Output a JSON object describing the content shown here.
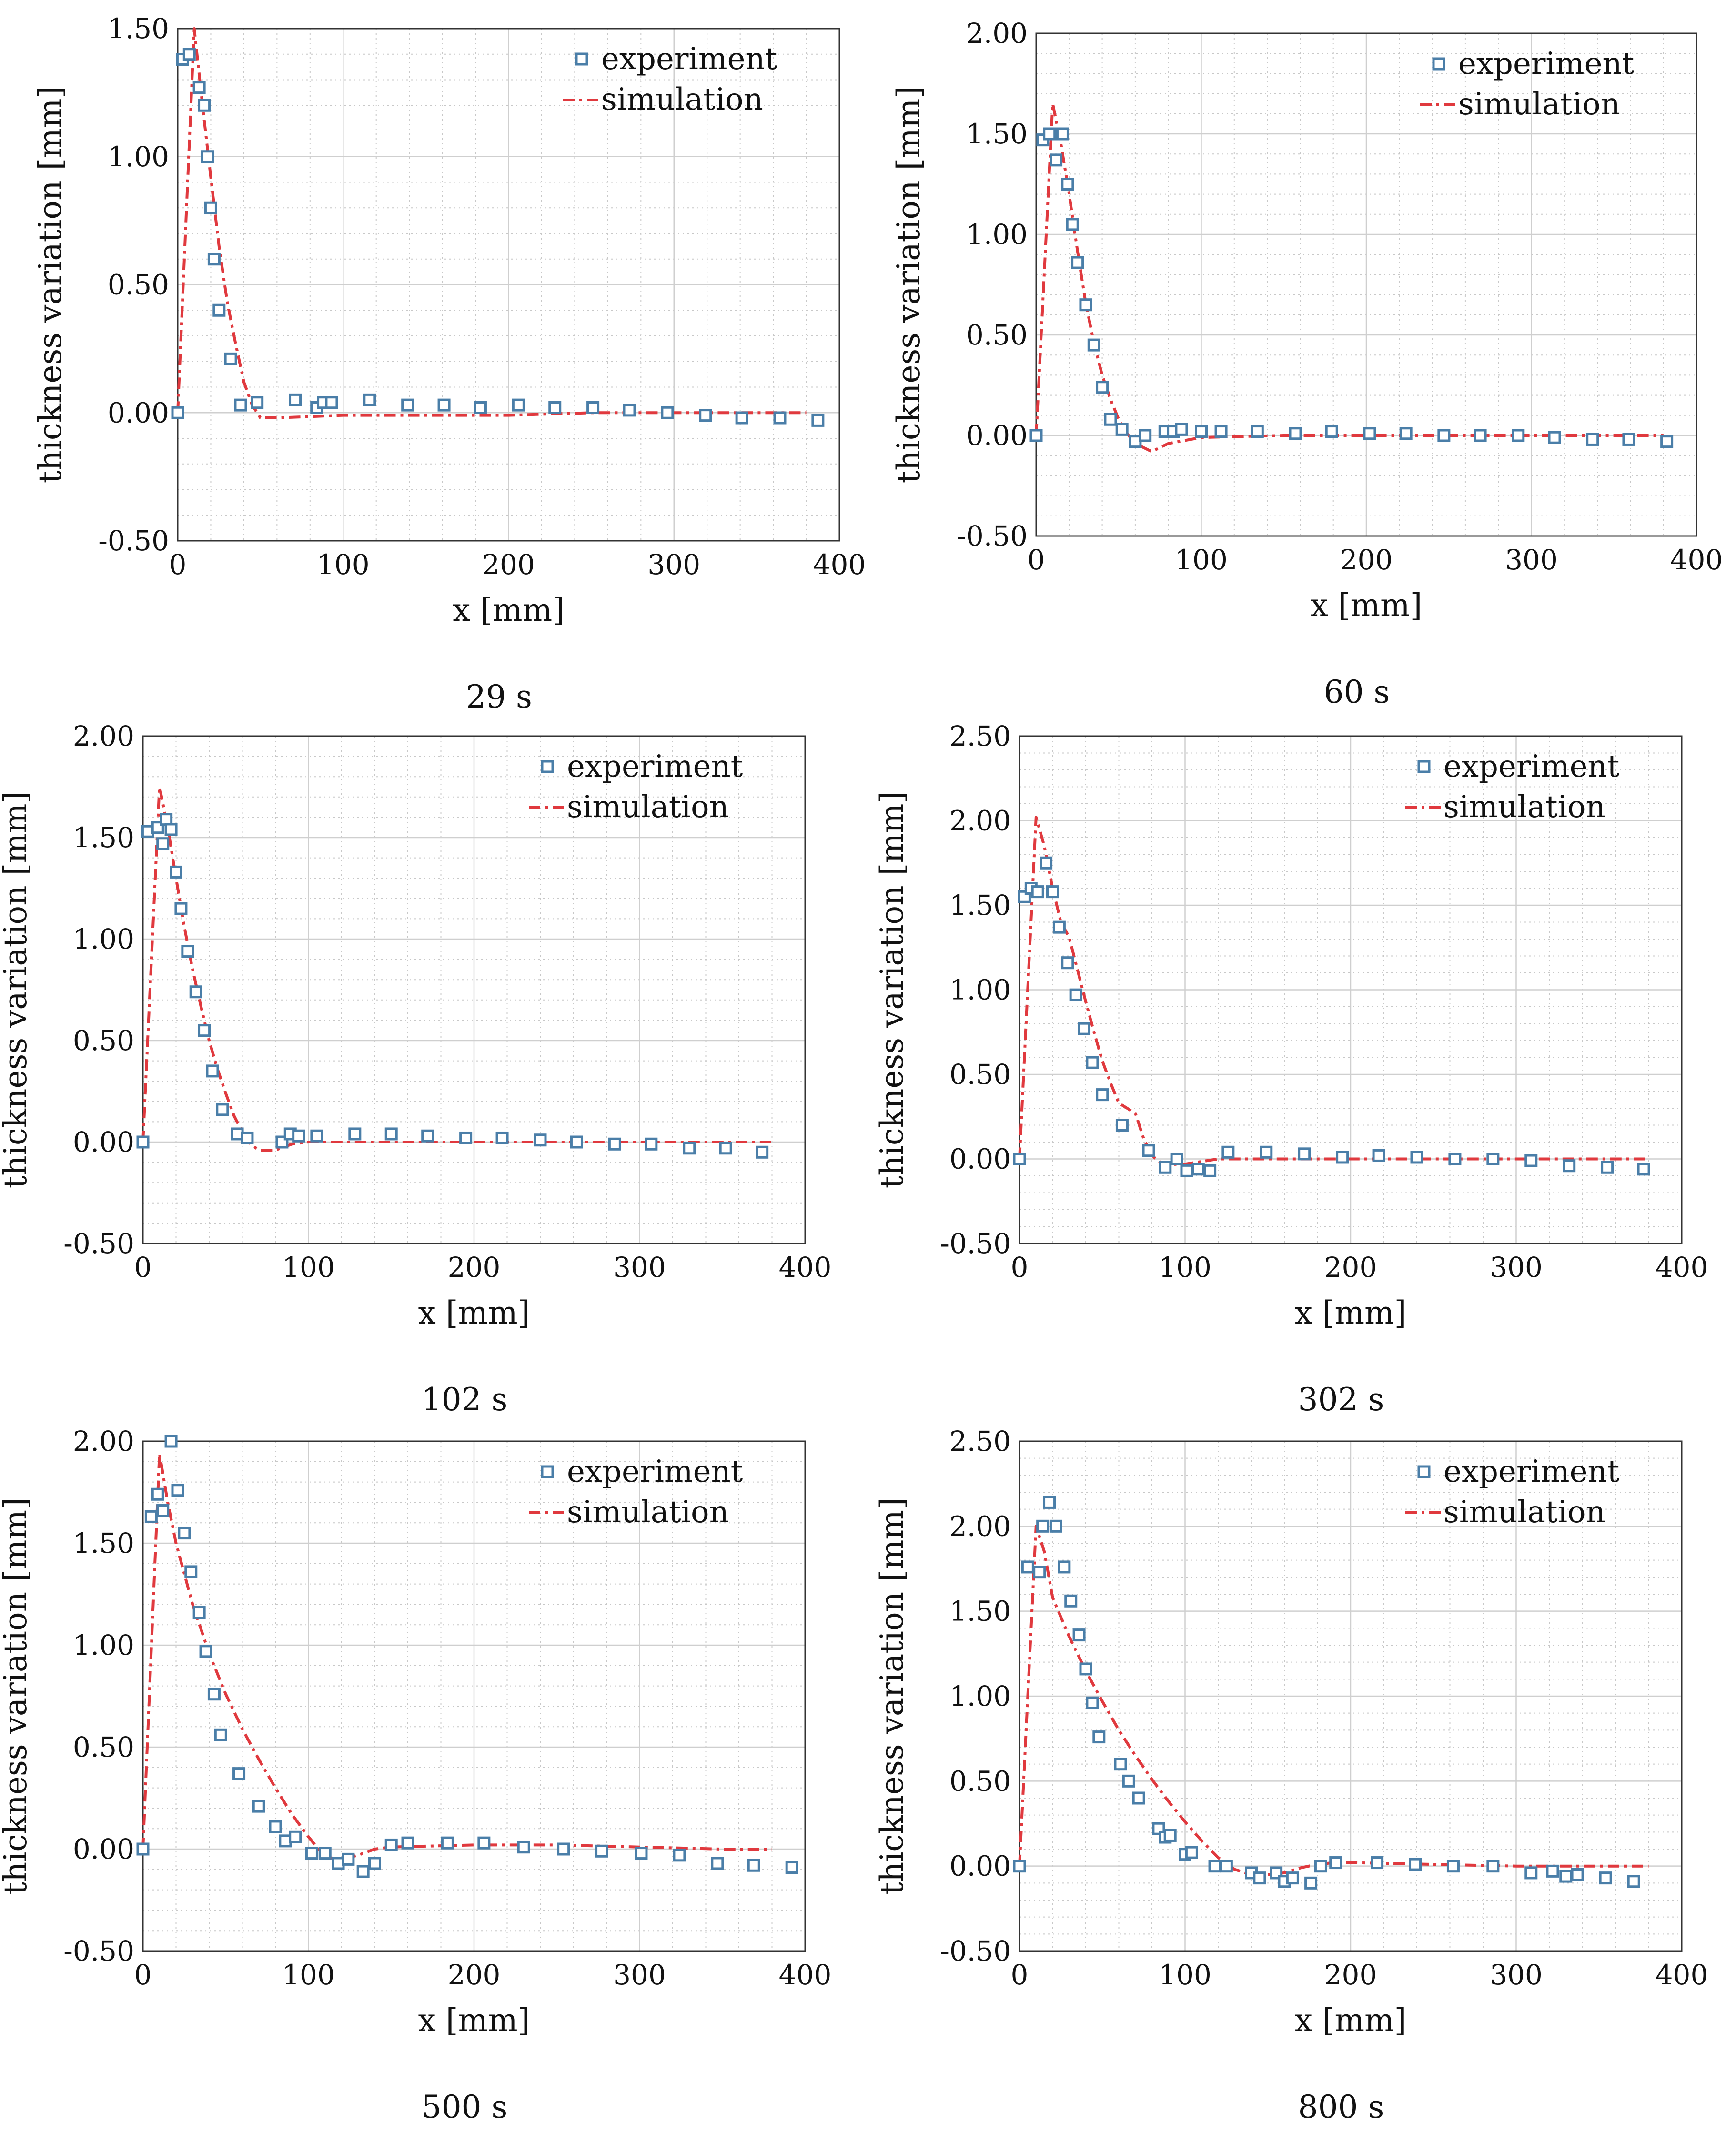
{
  "colors": {
    "experiment": "#4a7ea8",
    "simulation": "#e0393e",
    "grid_major": "#cfcfcf",
    "grid_minor": "#c8c8c8",
    "axis": "#333333"
  },
  "chart_data": [
    {
      "type": "scatter+line",
      "caption": "29 s",
      "xlabel": "x [mm]",
      "ylabel": "thickness variation [mm]",
      "xlim": [
        0,
        400
      ],
      "ylim": [
        -0.5,
        1.5
      ],
      "xticks": [
        0,
        100,
        200,
        300,
        400
      ],
      "xtick_labels": [
        "0",
        "100",
        "200",
        "300",
        "400"
      ],
      "yticks": [
        -0.5,
        0,
        0.5,
        1,
        1.5
      ],
      "ytick_labels": [
        "-0.50",
        "0.00",
        "0.50",
        "1.00",
        "1.50"
      ],
      "grid": true,
      "legend_position": "top-right",
      "series": [
        {
          "name": "experiment",
          "marker": "square",
          "x": [
            0,
            3,
            7,
            13,
            16,
            18,
            20,
            22,
            25,
            32,
            38,
            48,
            71,
            84,
            88,
            93,
            116,
            139,
            161,
            183,
            206,
            228,
            251,
            273,
            296,
            319,
            341,
            364,
            387
          ],
          "y": [
            0.0,
            1.38,
            1.4,
            1.27,
            1.2,
            1.0,
            0.8,
            0.6,
            0.4,
            0.21,
            0.03,
            0.04,
            0.05,
            0.02,
            0.04,
            0.04,
            0.05,
            0.03,
            0.03,
            0.02,
            0.03,
            0.02,
            0.02,
            0.01,
            0.0,
            -0.01,
            -0.02,
            -0.02,
            -0.03
          ]
        },
        {
          "name": "simulation",
          "line": "dash-dot",
          "x": [
            0,
            10,
            15,
            20,
            25,
            30,
            35,
            40,
            45,
            50,
            60,
            100,
            150,
            200,
            250,
            300,
            350,
            380
          ],
          "y": [
            0.0,
            1.5,
            1.2,
            0.92,
            0.65,
            0.43,
            0.27,
            0.12,
            0.03,
            -0.02,
            -0.02,
            -0.01,
            -0.01,
            -0.01,
            0.0,
            0.0,
            0.0,
            0.0
          ]
        }
      ]
    },
    {
      "type": "scatter+line",
      "caption": "60 s",
      "xlabel": "x [mm]",
      "ylabel": "thickness variation [mm]",
      "xlim": [
        0,
        400
      ],
      "ylim": [
        -0.5,
        2.0
      ],
      "xticks": [
        0,
        100,
        200,
        300,
        400
      ],
      "xtick_labels": [
        "0",
        "100",
        "200",
        "300",
        "400"
      ],
      "yticks": [
        -0.5,
        0,
        0.5,
        1,
        1.5,
        2
      ],
      "ytick_labels": [
        "-0.50",
        "0.00",
        "0.50",
        "1.00",
        "1.50",
        "2.00"
      ],
      "grid": true,
      "legend_position": "top-right",
      "series": [
        {
          "name": "experiment",
          "marker": "square",
          "x": [
            0,
            4,
            8,
            12,
            16,
            19,
            22,
            25,
            30,
            35,
            40,
            45,
            52,
            60,
            66,
            78,
            83,
            88,
            100,
            112,
            134,
            157,
            179,
            202,
            224,
            247,
            269,
            292,
            314,
            337,
            359,
            382
          ],
          "y": [
            0.0,
            1.47,
            1.5,
            1.37,
            1.5,
            1.25,
            1.05,
            0.86,
            0.65,
            0.45,
            0.24,
            0.08,
            0.03,
            -0.03,
            0.0,
            0.02,
            0.02,
            0.03,
            0.02,
            0.02,
            0.02,
            0.01,
            0.02,
            0.01,
            0.01,
            0.0,
            0.0,
            0.0,
            -0.01,
            -0.02,
            -0.02,
            -0.03
          ]
        },
        {
          "name": "simulation",
          "line": "dash-dot",
          "x": [
            0,
            10,
            15,
            20,
            25,
            30,
            35,
            40,
            45,
            50,
            55,
            60,
            70,
            80,
            100,
            150,
            200,
            250,
            300,
            350,
            380
          ],
          "y": [
            0.0,
            1.65,
            1.45,
            1.2,
            0.92,
            0.66,
            0.46,
            0.3,
            0.18,
            0.08,
            0.01,
            -0.04,
            -0.08,
            -0.04,
            -0.01,
            0.0,
            0.0,
            0.0,
            0.0,
            0.0,
            0.0
          ]
        }
      ]
    },
    {
      "type": "scatter+line",
      "caption": "102 s",
      "xlabel": "x [mm]",
      "ylabel": "thickness variation [mm]",
      "xlim": [
        0,
        400
      ],
      "ylim": [
        -0.5,
        2.0
      ],
      "xticks": [
        0,
        100,
        200,
        300,
        400
      ],
      "xtick_labels": [
        "0",
        "100",
        "200",
        "300",
        "400"
      ],
      "yticks": [
        -0.5,
        0,
        0.5,
        1,
        1.5,
        2
      ],
      "ytick_labels": [
        "-0.50",
        "0.00",
        "0.50",
        "1.00",
        "1.50",
        "2.00"
      ],
      "grid": true,
      "legend_position": "top-right",
      "series": [
        {
          "name": "experiment",
          "marker": "square",
          "x": [
            0,
            3,
            9,
            12,
            14,
            17,
            20,
            23,
            27,
            32,
            37,
            42,
            48,
            57,
            63,
            84,
            89,
            94,
            105,
            128,
            150,
            172,
            195,
            217,
            240,
            262,
            285,
            307,
            330,
            352,
            374
          ],
          "y": [
            0.0,
            1.53,
            1.55,
            1.47,
            1.59,
            1.54,
            1.33,
            1.15,
            0.94,
            0.74,
            0.55,
            0.35,
            0.16,
            0.04,
            0.02,
            0.0,
            0.04,
            0.03,
            0.03,
            0.04,
            0.04,
            0.03,
            0.02,
            0.02,
            0.01,
            0.0,
            -0.01,
            -0.01,
            -0.03,
            -0.03,
            -0.05
          ]
        },
        {
          "name": "simulation",
          "line": "dash-dot",
          "x": [
            0,
            10,
            15,
            20,
            25,
            30,
            35,
            40,
            45,
            50,
            55,
            60,
            65,
            70,
            80,
            90,
            100,
            150,
            200,
            250,
            300,
            350,
            380
          ],
          "y": [
            0.0,
            1.75,
            1.55,
            1.3,
            1.06,
            0.85,
            0.67,
            0.5,
            0.36,
            0.24,
            0.13,
            0.05,
            -0.01,
            -0.04,
            -0.04,
            -0.01,
            0.0,
            0.0,
            0.0,
            0.0,
            0.0,
            0.0,
            0.0
          ]
        }
      ]
    },
    {
      "type": "scatter+line",
      "caption": "302 s",
      "xlabel": "x [mm]",
      "ylabel": "thickness variation [mm]",
      "xlim": [
        0,
        400
      ],
      "ylim": [
        -0.5,
        2.5
      ],
      "xticks": [
        0,
        100,
        200,
        300,
        400
      ],
      "xtick_labels": [
        "0",
        "100",
        "200",
        "300",
        "400"
      ],
      "yticks": [
        -0.5,
        0,
        0.5,
        1,
        1.5,
        2,
        2.5
      ],
      "ytick_labels": [
        "-0.50",
        "0.00",
        "0.50",
        "1.00",
        "1.50",
        "2.00",
        "2.50"
      ],
      "grid": true,
      "legend_position": "top-right",
      "series": [
        {
          "name": "experiment",
          "marker": "square",
          "x": [
            0,
            3,
            7,
            11,
            16,
            20,
            24,
            29,
            34,
            39,
            44,
            50,
            62,
            78,
            88,
            95,
            101,
            108,
            115,
            126,
            149,
            172,
            195,
            217,
            240,
            263,
            286,
            309,
            332,
            355,
            377
          ],
          "y": [
            0.0,
            1.55,
            1.6,
            1.58,
            1.75,
            1.58,
            1.37,
            1.16,
            0.97,
            0.77,
            0.57,
            0.38,
            0.2,
            0.05,
            -0.05,
            0.0,
            -0.07,
            -0.06,
            -0.07,
            0.04,
            0.04,
            0.03,
            0.01,
            0.02,
            0.01,
            0.0,
            0.0,
            -0.01,
            -0.04,
            -0.05,
            -0.06
          ]
        },
        {
          "name": "simulation",
          "line": "dash-dot",
          "x": [
            0,
            10,
            15,
            20,
            25,
            30,
            35,
            40,
            45,
            50,
            55,
            60,
            65,
            70,
            75,
            80,
            85,
            90,
            95,
            100,
            120,
            150,
            200,
            250,
            300,
            350,
            380
          ],
          "y": [
            0.0,
            2.02,
            1.85,
            1.6,
            1.4,
            1.31,
            1.12,
            0.93,
            0.75,
            0.58,
            0.45,
            0.33,
            0.3,
            0.27,
            0.12,
            0.02,
            -0.02,
            -0.04,
            -0.03,
            -0.03,
            0.0,
            0.0,
            0.0,
            0.0,
            0.0,
            0.0,
            0.0
          ]
        }
      ]
    },
    {
      "type": "scatter+line",
      "caption": "500 s",
      "xlabel": "x [mm]",
      "ylabel": "thickness variation [mm]",
      "xlim": [
        0,
        400
      ],
      "ylim": [
        -0.5,
        2.0
      ],
      "xticks": [
        0,
        100,
        200,
        300,
        400
      ],
      "xtick_labels": [
        "0",
        "100",
        "200",
        "300",
        "400"
      ],
      "yticks": [
        -0.5,
        0,
        0.5,
        1,
        1.5,
        2
      ],
      "ytick_labels": [
        "-0.50",
        "0.00",
        "0.50",
        "1.00",
        "1.50",
        "2.00"
      ],
      "grid": true,
      "legend_position": "top-right",
      "series": [
        {
          "name": "experiment",
          "marker": "square",
          "x": [
            0,
            5,
            9,
            12,
            17,
            21,
            25,
            29,
            34,
            38,
            43,
            47,
            58,
            70,
            80,
            86,
            92,
            102,
            110,
            118,
            124,
            133,
            140,
            150,
            160,
            184,
            206,
            230,
            254,
            277,
            301,
            324,
            347,
            369,
            392
          ],
          "y": [
            0.0,
            1.63,
            1.74,
            1.66,
            2.0,
            1.76,
            1.55,
            1.36,
            1.16,
            0.97,
            0.76,
            0.56,
            0.37,
            0.21,
            0.11,
            0.04,
            0.06,
            -0.02,
            -0.02,
            -0.07,
            -0.05,
            -0.11,
            -0.07,
            0.02,
            0.03,
            0.03,
            0.03,
            0.01,
            0.0,
            -0.01,
            -0.02,
            -0.03,
            -0.07,
            -0.08,
            -0.09
          ]
        },
        {
          "name": "simulation",
          "line": "dash-dot",
          "x": [
            0,
            10,
            15,
            20,
            30,
            40,
            50,
            60,
            70,
            80,
            90,
            100,
            110,
            120,
            130,
            140,
            150,
            200,
            250,
            300,
            350,
            380
          ],
          "y": [
            0.0,
            1.94,
            1.7,
            1.5,
            1.2,
            0.96,
            0.76,
            0.59,
            0.44,
            0.3,
            0.17,
            0.06,
            -0.04,
            -0.05,
            -0.03,
            0.0,
            0.01,
            0.02,
            0.02,
            0.01,
            0.0,
            0.0
          ]
        }
      ]
    },
    {
      "type": "scatter+line",
      "caption": "800 s",
      "xlabel": "x [mm]",
      "ylabel": "thickness variation [mm]",
      "xlim": [
        0,
        400
      ],
      "ylim": [
        -0.5,
        2.5
      ],
      "xticks": [
        0,
        100,
        200,
        300,
        400
      ],
      "xtick_labels": [
        "0",
        "100",
        "200",
        "300",
        "400"
      ],
      "yticks": [
        -0.5,
        0,
        0.5,
        1,
        1.5,
        2,
        2.5
      ],
      "ytick_labels": [
        "-0.50",
        "0.00",
        "0.50",
        "1.00",
        "1.50",
        "2.00",
        "2.50"
      ],
      "grid": true,
      "legend_position": "top-right",
      "series": [
        {
          "name": "experiment",
          "marker": "square",
          "x": [
            0,
            5,
            12,
            14,
            18,
            22,
            27,
            31,
            36,
            40,
            44,
            48,
            61,
            66,
            72,
            84,
            88,
            91,
            100,
            104,
            118,
            125,
            140,
            145,
            155,
            160,
            165,
            176,
            182,
            191,
            216,
            239,
            262,
            286,
            309,
            322,
            330,
            337,
            354,
            371
          ],
          "y": [
            0.0,
            1.76,
            1.73,
            2.0,
            2.14,
            2.0,
            1.76,
            1.56,
            1.36,
            1.16,
            0.96,
            0.76,
            0.6,
            0.5,
            0.4,
            0.22,
            0.17,
            0.18,
            0.07,
            0.08,
            0.0,
            0.0,
            -0.04,
            -0.07,
            -0.04,
            -0.09,
            -0.07,
            -0.1,
            0.0,
            0.02,
            0.02,
            0.01,
            0.0,
            0.0,
            -0.04,
            -0.03,
            -0.06,
            -0.05,
            -0.07,
            -0.09
          ]
        },
        {
          "name": "simulation",
          "line": "dash-dot",
          "x": [
            0,
            10,
            15,
            20,
            30,
            40,
            50,
            60,
            70,
            80,
            90,
            100,
            110,
            120,
            130,
            140,
            150,
            160,
            170,
            180,
            190,
            200,
            250,
            300,
            350,
            380
          ],
          "y": [
            0.0,
            2.0,
            1.85,
            1.58,
            1.35,
            1.15,
            0.97,
            0.8,
            0.65,
            0.51,
            0.38,
            0.26,
            0.15,
            0.05,
            -0.02,
            -0.05,
            -0.05,
            -0.04,
            -0.01,
            0.01,
            0.02,
            0.02,
            0.01,
            0.0,
            0.0,
            0.0
          ]
        }
      ]
    }
  ]
}
